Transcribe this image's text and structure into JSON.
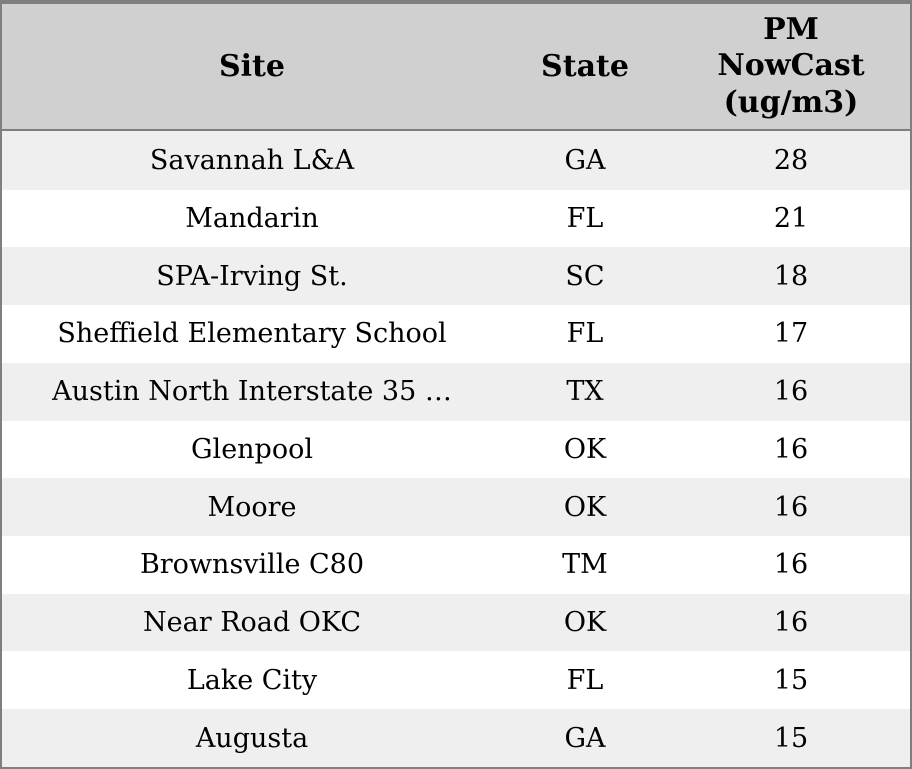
{
  "chart_data": {
    "type": "table",
    "title": "",
    "columns": [
      "Site",
      "State",
      "PM NowCast (ug/m3)"
    ],
    "rows": [
      {
        "site": "Savannah L&A",
        "state": "GA",
        "pm_nowcast": 28
      },
      {
        "site": "Mandarin",
        "state": "FL",
        "pm_nowcast": 21
      },
      {
        "site": "SPA-Irving St.",
        "state": "SC",
        "pm_nowcast": 18
      },
      {
        "site": "Sheffield Elementary School",
        "state": "FL",
        "pm_nowcast": 17
      },
      {
        "site": "Austin North Interstate 35 …",
        "state": "TX",
        "pm_nowcast": 16
      },
      {
        "site": "Glenpool",
        "state": "OK",
        "pm_nowcast": 16
      },
      {
        "site": "Moore",
        "state": "OK",
        "pm_nowcast": 16
      },
      {
        "site": "Brownsville C80",
        "state": "TM",
        "pm_nowcast": 16
      },
      {
        "site": "Near Road OKC",
        "state": "OK",
        "pm_nowcast": 16
      },
      {
        "site": "Lake City",
        "state": "FL",
        "pm_nowcast": 15
      },
      {
        "site": "Augusta",
        "state": "GA",
        "pm_nowcast": 15
      }
    ]
  },
  "header": {
    "site": "Site",
    "state": "State",
    "pm": "PM NowCast (ug/m3)"
  },
  "colors": {
    "header_bg": "#d0d0d0",
    "row_stripe_bg": "#efefef",
    "row_bg": "#ffffff",
    "border": "#7f7f7f",
    "text": "#000000"
  }
}
